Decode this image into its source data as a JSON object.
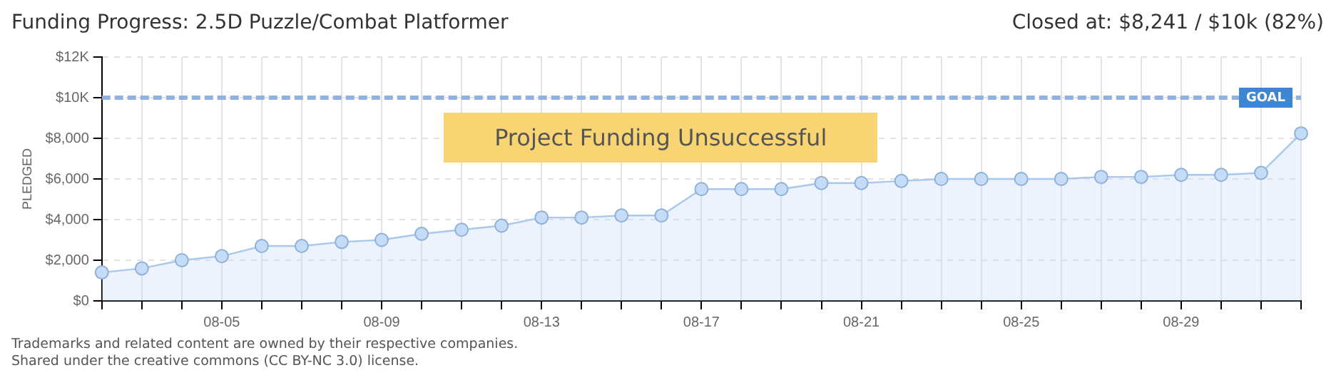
{
  "chart_data": {
    "type": "area",
    "title": "Funding Progress: 2.5D Puzzle/Combat Platformer",
    "subtitle": "Closed at: $8,241 / $10k (82%)",
    "ylabel": "PLEDGED",
    "categories": [
      null,
      null,
      null,
      "08-05",
      null,
      null,
      null,
      "08-09",
      null,
      null,
      null,
      "08-13",
      null,
      null,
      null,
      "08-17",
      null,
      null,
      null,
      "08-21",
      null,
      null,
      null,
      "08-25",
      null,
      null,
      null,
      "08-29",
      null,
      null,
      null
    ],
    "series": [
      {
        "color": "#a9c8ec",
        "values": [
          1400,
          1600,
          2000,
          2200,
          2700,
          2700,
          2900,
          3000,
          3300,
          3500,
          3700,
          4100,
          4100,
          4200,
          4200,
          5500,
          5500,
          5500,
          5800,
          5800,
          5900,
          6000,
          6000,
          6000,
          6000,
          6100,
          6100,
          6200,
          6200,
          6300,
          8241
        ]
      }
    ],
    "ylim": [
      0,
      12000
    ],
    "yticks": [
      {
        "value": 0,
        "label": "$0"
      },
      {
        "value": 2000,
        "label": "$2,000"
      },
      {
        "value": 4000,
        "label": "$4,000"
      },
      {
        "value": 6000,
        "label": "$6,000"
      },
      {
        "value": 8000,
        "label": "$8,000"
      },
      {
        "value": 10000,
        "label": "$10K"
      },
      {
        "value": 12000,
        "label": "$12K"
      }
    ],
    "ref_lines": [
      {
        "axis": "y",
        "value": 10000,
        "label": "GOAL",
        "color": "#8fb3dd",
        "line_style": "dashed"
      }
    ],
    "grid": true,
    "marker": "circle",
    "legend": false,
    "annotations": [
      "Project Funding Unsuccessful",
      "Trademarks and related content are owned by their respective companies.",
      "Shared under the creative commons (CC BY-NC 3.0) license."
    ]
  }
}
